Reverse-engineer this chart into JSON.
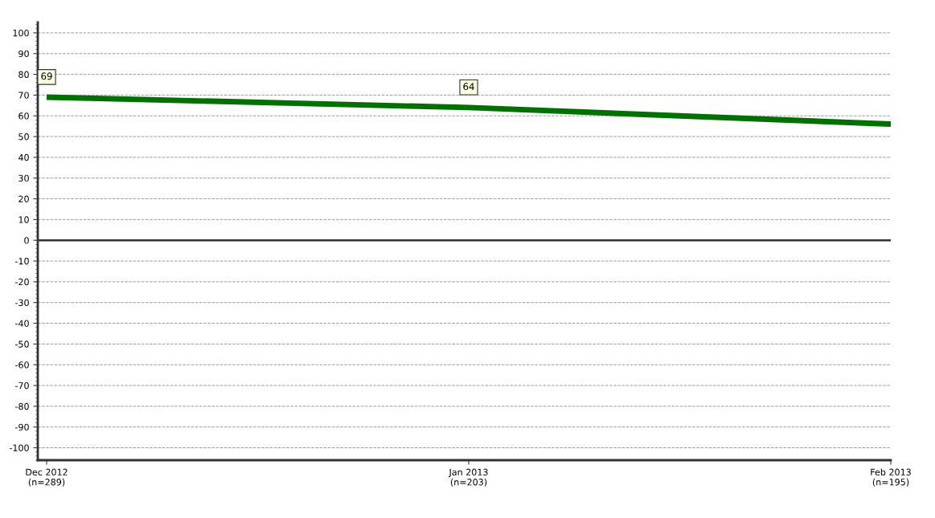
{
  "chart_data": {
    "type": "line",
    "categories": [
      "Dec 2012\n(n=289)",
      "Jan 2013\n(n=203)",
      "Feb 2013\n(n=195)"
    ],
    "series": [
      {
        "color": "#007000",
        "values": [
          69,
          64,
          56
        ],
        "value_labels": [
          "69",
          "64",
          null
        ]
      }
    ],
    "ylim": [
      -106,
      105
    ],
    "yticks": [
      -100,
      -90,
      -80,
      -70,
      -60,
      -50,
      -40,
      -30,
      -20,
      -10,
      0,
      10,
      20,
      30,
      40,
      50,
      60,
      70,
      80,
      90,
      100
    ],
    "ref_lines": [
      {
        "axis": "y",
        "value": 0,
        "color": "#333333"
      }
    ],
    "grid": "y",
    "marker": "none",
    "line_style": "solid"
  }
}
